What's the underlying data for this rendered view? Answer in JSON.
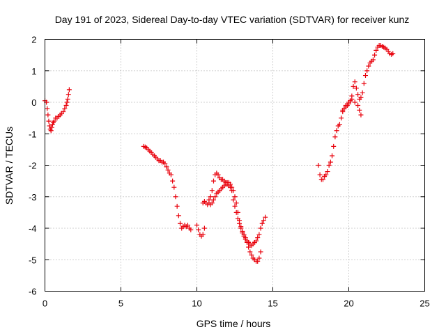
{
  "chart_data": {
    "type": "scatter",
    "title": "Day 191 of 2023, Sidereal Day-to-day VTEC variation (SDTVAR) for receiver kunz",
    "xlabel": "GPS time / hours",
    "ylabel": "SDTVAR / TECUs",
    "xlim": [
      0,
      25
    ],
    "ylim": [
      -6,
      2
    ],
    "xticks": [
      "0",
      "5",
      "10",
      "15",
      "20",
      "25"
    ],
    "yticks": [
      "2",
      "1",
      "0",
      "-1",
      "-2",
      "-3",
      "-4",
      "-5",
      "-6"
    ],
    "grid": true,
    "marker": "plus",
    "color": "#e8000b",
    "segments": [
      [
        [
          0.0,
          0.05
        ],
        [
          0.1,
          0.0
        ],
        [
          0.15,
          -0.2
        ],
        [
          0.2,
          -0.4
        ],
        [
          0.25,
          -0.6
        ],
        [
          0.3,
          -0.75
        ],
        [
          0.35,
          -0.85
        ],
        [
          0.4,
          -0.9
        ],
        [
          0.45,
          -0.8
        ],
        [
          0.5,
          -0.7
        ],
        [
          0.55,
          -0.65
        ],
        [
          0.6,
          -0.6
        ],
        [
          0.7,
          -0.5
        ],
        [
          0.8,
          -0.5
        ],
        [
          0.9,
          -0.45
        ],
        [
          1.0,
          -0.4
        ],
        [
          1.1,
          -0.35
        ],
        [
          1.2,
          -0.3
        ],
        [
          1.3,
          -0.2
        ],
        [
          1.4,
          -0.1
        ],
        [
          1.45,
          0.0
        ],
        [
          1.5,
          0.1
        ],
        [
          1.55,
          0.25
        ],
        [
          1.6,
          0.4
        ]
      ],
      [
        [
          6.5,
          -1.4
        ],
        [
          6.6,
          -1.42
        ],
        [
          6.7,
          -1.45
        ],
        [
          6.8,
          -1.5
        ],
        [
          6.9,
          -1.55
        ],
        [
          7.0,
          -1.6
        ],
        [
          7.1,
          -1.65
        ],
        [
          7.2,
          -1.7
        ],
        [
          7.3,
          -1.75
        ],
        [
          7.4,
          -1.8
        ],
        [
          7.5,
          -1.85
        ],
        [
          7.6,
          -1.85
        ],
        [
          7.7,
          -1.9
        ],
        [
          7.8,
          -1.9
        ],
        [
          7.9,
          -1.95
        ],
        [
          8.0,
          -2.05
        ],
        [
          8.1,
          -2.15
        ],
        [
          8.2,
          -2.25
        ],
        [
          8.3,
          -2.3
        ],
        [
          8.4,
          -2.5
        ],
        [
          8.5,
          -2.7
        ],
        [
          8.6,
          -3.0
        ],
        [
          8.7,
          -3.3
        ],
        [
          8.8,
          -3.6
        ],
        [
          8.9,
          -3.85
        ],
        [
          9.0,
          -4.0
        ],
        [
          9.1,
          -3.95
        ],
        [
          9.2,
          -3.9
        ],
        [
          9.3,
          -3.95
        ],
        [
          9.4,
          -3.9
        ],
        [
          9.5,
          -4.0
        ],
        [
          9.6,
          -4.05
        ]
      ],
      [
        [
          10.0,
          -3.9
        ],
        [
          10.1,
          -4.05
        ],
        [
          10.2,
          -4.2
        ],
        [
          10.3,
          -4.25
        ],
        [
          10.4,
          -4.2
        ],
        [
          10.5,
          -4.0
        ],
        [
          10.4,
          -3.2
        ],
        [
          10.5,
          -3.15
        ],
        [
          10.6,
          -3.2
        ],
        [
          10.7,
          -3.25
        ],
        [
          10.8,
          -3.1
        ],
        [
          10.9,
          -3.0
        ],
        [
          11.0,
          -2.8
        ],
        [
          11.1,
          -2.5
        ],
        [
          11.2,
          -2.3
        ],
        [
          11.3,
          -2.25
        ],
        [
          11.4,
          -2.3
        ],
        [
          11.5,
          -2.4
        ],
        [
          11.6,
          -2.45
        ],
        [
          11.7,
          -2.45
        ],
        [
          11.8,
          -2.5
        ],
        [
          11.9,
          -2.55
        ],
        [
          12.0,
          -2.6
        ],
        [
          12.1,
          -2.65
        ],
        [
          12.2,
          -2.7
        ],
        [
          12.3,
          -2.8
        ],
        [
          12.4,
          -3.1
        ],
        [
          12.5,
          -3.3
        ],
        [
          12.6,
          -3.5
        ],
        [
          12.7,
          -3.7
        ],
        [
          12.8,
          -3.85
        ],
        [
          12.9,
          -4.0
        ],
        [
          13.0,
          -4.15
        ],
        [
          13.1,
          -4.25
        ],
        [
          13.2,
          -4.35
        ],
        [
          13.3,
          -4.4
        ],
        [
          13.4,
          -4.45
        ],
        [
          13.5,
          -4.5
        ],
        [
          13.6,
          -4.55
        ],
        [
          13.7,
          -4.5
        ],
        [
          13.8,
          -4.45
        ],
        [
          13.9,
          -4.4
        ],
        [
          14.0,
          -4.3
        ],
        [
          14.1,
          -4.2
        ],
        [
          14.2,
          -4.0
        ],
        [
          14.3,
          -3.85
        ],
        [
          14.4,
          -3.75
        ],
        [
          14.5,
          -3.65
        ],
        [
          10.8,
          -3.2
        ],
        [
          10.9,
          -3.25
        ],
        [
          11.0,
          -3.2
        ],
        [
          11.1,
          -3.1
        ],
        [
          11.2,
          -3.0
        ],
        [
          11.3,
          -2.9
        ],
        [
          11.4,
          -2.85
        ],
        [
          11.5,
          -2.8
        ],
        [
          11.6,
          -2.75
        ],
        [
          11.7,
          -2.7
        ],
        [
          11.8,
          -2.65
        ],
        [
          11.9,
          -2.6
        ],
        [
          12.0,
          -2.55
        ],
        [
          12.1,
          -2.55
        ],
        [
          12.2,
          -2.6
        ],
        [
          12.3,
          -2.7
        ],
        [
          12.4,
          -2.8
        ],
        [
          12.5,
          -3.0
        ],
        [
          12.6,
          -3.2
        ],
        [
          12.7,
          -3.5
        ],
        [
          12.8,
          -3.75
        ],
        [
          12.9,
          -3.95
        ],
        [
          13.0,
          -4.1
        ],
        [
          13.1,
          -4.2
        ],
        [
          13.2,
          -4.3
        ],
        [
          13.3,
          -4.45
        ],
        [
          13.4,
          -4.6
        ],
        [
          13.5,
          -4.75
        ],
        [
          13.6,
          -4.85
        ],
        [
          13.7,
          -4.95
        ],
        [
          13.8,
          -5.0
        ],
        [
          13.9,
          -5.05
        ],
        [
          14.0,
          -5.05
        ],
        [
          14.1,
          -4.95
        ],
        [
          14.2,
          -4.75
        ]
      ],
      [
        [
          18.0,
          -2.0
        ],
        [
          18.1,
          -2.3
        ],
        [
          18.2,
          -2.45
        ],
        [
          18.3,
          -2.45
        ],
        [
          18.4,
          -2.35
        ],
        [
          18.5,
          -2.3
        ],
        [
          18.6,
          -2.2
        ],
        [
          18.7,
          -2.0
        ],
        [
          18.8,
          -1.9
        ],
        [
          18.9,
          -1.7
        ],
        [
          19.0,
          -1.4
        ],
        [
          19.1,
          -1.1
        ],
        [
          19.2,
          -0.9
        ],
        [
          19.3,
          -0.75
        ],
        [
          19.4,
          -0.7
        ],
        [
          19.5,
          -0.5
        ],
        [
          19.6,
          -0.3
        ],
        [
          19.7,
          -0.2
        ],
        [
          19.8,
          -0.15
        ],
        [
          19.9,
          -0.1
        ],
        [
          20.0,
          -0.05
        ],
        [
          20.1,
          0.05
        ],
        [
          20.2,
          0.2
        ],
        [
          20.3,
          0.5
        ],
        [
          20.4,
          0.65
        ],
        [
          20.5,
          0.45
        ],
        [
          20.6,
          0.25
        ],
        [
          20.7,
          0.1
        ],
        [
          20.8,
          0.15
        ],
        [
          20.9,
          0.3
        ],
        [
          21.0,
          0.6
        ],
        [
          21.1,
          0.85
        ],
        [
          21.2,
          1.0
        ],
        [
          21.3,
          1.15
        ],
        [
          21.4,
          1.25
        ],
        [
          21.5,
          1.3
        ],
        [
          21.6,
          1.35
        ],
        [
          21.7,
          1.5
        ],
        [
          21.8,
          1.65
        ],
        [
          21.9,
          1.75
        ],
        [
          22.0,
          1.8
        ],
        [
          22.1,
          1.8
        ],
        [
          22.2,
          1.78
        ],
        [
          22.3,
          1.75
        ],
        [
          22.4,
          1.72
        ],
        [
          22.5,
          1.68
        ],
        [
          22.6,
          1.62
        ],
        [
          22.7,
          1.55
        ],
        [
          22.8,
          1.52
        ],
        [
          22.9,
          1.55
        ],
        [
          19.6,
          -0.25
        ],
        [
          19.8,
          -0.1
        ],
        [
          20.0,
          0.0
        ],
        [
          20.2,
          0.1
        ],
        [
          20.4,
          0.0
        ],
        [
          20.6,
          -0.1
        ],
        [
          20.7,
          -0.25
        ],
        [
          20.8,
          -0.4
        ]
      ]
    ]
  }
}
